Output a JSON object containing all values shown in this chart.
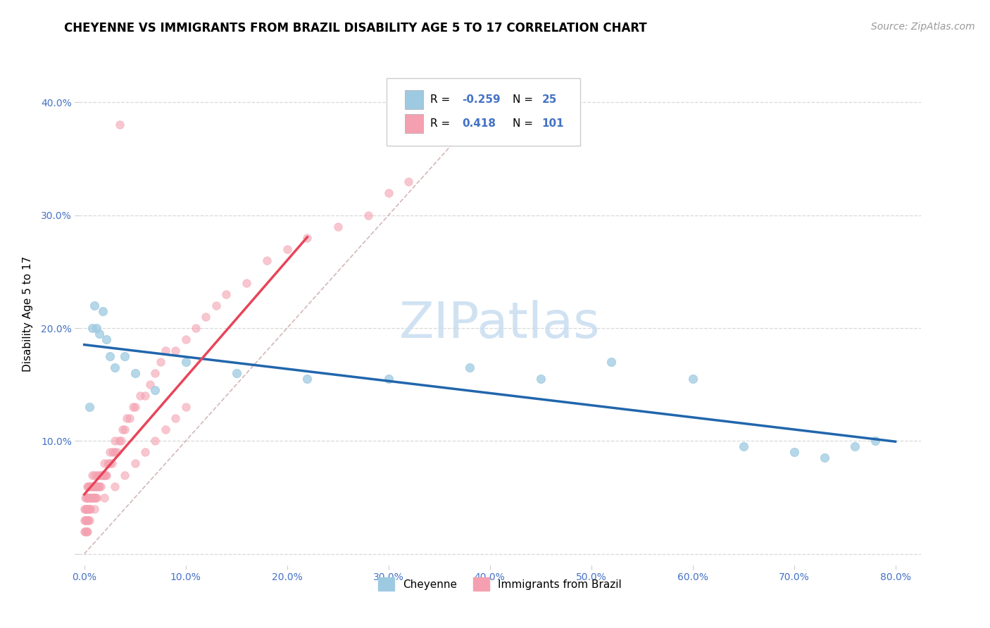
{
  "title": "CHEYENNE VS IMMIGRANTS FROM BRAZIL DISABILITY AGE 5 TO 17 CORRELATION CHART",
  "source": "Source: ZipAtlas.com",
  "ylabel": "Disability Age 5 to 17",
  "r_blue": -0.259,
  "n_blue": 25,
  "r_pink": 0.418,
  "n_pink": 101,
  "xlim": [
    -0.005,
    0.825
  ],
  "ylim": [
    -0.01,
    0.435
  ],
  "xticks": [
    0.0,
    0.1,
    0.2,
    0.3,
    0.4,
    0.5,
    0.6,
    0.7,
    0.8
  ],
  "yticks": [
    0.0,
    0.1,
    0.2,
    0.3,
    0.4
  ],
  "blue_color": "#9ecae1",
  "pink_color": "#f4a0b0",
  "blue_line_color": "#2166ac",
  "pink_line_color": "#e8455a",
  "ref_line_color": "#d0b0b0",
  "watermark_color": "#c8ddf0",
  "tick_color": "#4472c4",
  "grid_color": "#d8d8d8",
  "title_fontsize": 12,
  "source_fontsize": 10,
  "axis_label_fontsize": 11,
  "tick_fontsize": 10,
  "blue_x": [
    0.005,
    0.008,
    0.01,
    0.012,
    0.015,
    0.018,
    0.022,
    0.025,
    0.03,
    0.04,
    0.05,
    0.07,
    0.1,
    0.15,
    0.22,
    0.3,
    0.38,
    0.45,
    0.52,
    0.6,
    0.65,
    0.7,
    0.73,
    0.76,
    0.78
  ],
  "blue_y": [
    0.13,
    0.2,
    0.22,
    0.2,
    0.195,
    0.215,
    0.19,
    0.175,
    0.165,
    0.175,
    0.16,
    0.145,
    0.17,
    0.16,
    0.155,
    0.155,
    0.165,
    0.155,
    0.17,
    0.155,
    0.095,
    0.09,
    0.085,
    0.095,
    0.1
  ],
  "pink_x": [
    0.0,
    0.0,
    0.0,
    0.001,
    0.001,
    0.001,
    0.001,
    0.002,
    0.002,
    0.002,
    0.002,
    0.003,
    0.003,
    0.003,
    0.003,
    0.003,
    0.004,
    0.004,
    0.004,
    0.004,
    0.005,
    0.005,
    0.005,
    0.005,
    0.006,
    0.006,
    0.006,
    0.007,
    0.007,
    0.008,
    0.008,
    0.008,
    0.009,
    0.009,
    0.01,
    0.01,
    0.01,
    0.011,
    0.011,
    0.012,
    0.012,
    0.013,
    0.013,
    0.014,
    0.015,
    0.015,
    0.016,
    0.017,
    0.018,
    0.019,
    0.02,
    0.02,
    0.021,
    0.022,
    0.023,
    0.025,
    0.025,
    0.027,
    0.028,
    0.03,
    0.03,
    0.032,
    0.034,
    0.036,
    0.038,
    0.04,
    0.042,
    0.045,
    0.048,
    0.05,
    0.055,
    0.06,
    0.065,
    0.07,
    0.075,
    0.08,
    0.09,
    0.1,
    0.11,
    0.12,
    0.13,
    0.14,
    0.16,
    0.18,
    0.2,
    0.22,
    0.25,
    0.28,
    0.3,
    0.32,
    0.01,
    0.02,
    0.03,
    0.04,
    0.05,
    0.06,
    0.07,
    0.08,
    0.09,
    0.1,
    0.035
  ],
  "pink_y": [
    0.02,
    0.03,
    0.04,
    0.02,
    0.03,
    0.04,
    0.05,
    0.02,
    0.03,
    0.04,
    0.05,
    0.02,
    0.03,
    0.04,
    0.05,
    0.06,
    0.03,
    0.04,
    0.05,
    0.06,
    0.03,
    0.04,
    0.05,
    0.06,
    0.04,
    0.05,
    0.06,
    0.05,
    0.06,
    0.05,
    0.06,
    0.07,
    0.05,
    0.06,
    0.05,
    0.06,
    0.07,
    0.05,
    0.06,
    0.05,
    0.06,
    0.06,
    0.07,
    0.06,
    0.06,
    0.07,
    0.06,
    0.07,
    0.07,
    0.07,
    0.07,
    0.08,
    0.07,
    0.07,
    0.08,
    0.08,
    0.09,
    0.08,
    0.09,
    0.09,
    0.1,
    0.09,
    0.1,
    0.1,
    0.11,
    0.11,
    0.12,
    0.12,
    0.13,
    0.13,
    0.14,
    0.14,
    0.15,
    0.16,
    0.17,
    0.18,
    0.18,
    0.19,
    0.2,
    0.21,
    0.22,
    0.23,
    0.24,
    0.26,
    0.27,
    0.28,
    0.29,
    0.3,
    0.32,
    0.33,
    0.04,
    0.05,
    0.06,
    0.07,
    0.08,
    0.09,
    0.1,
    0.11,
    0.12,
    0.13,
    0.38
  ]
}
